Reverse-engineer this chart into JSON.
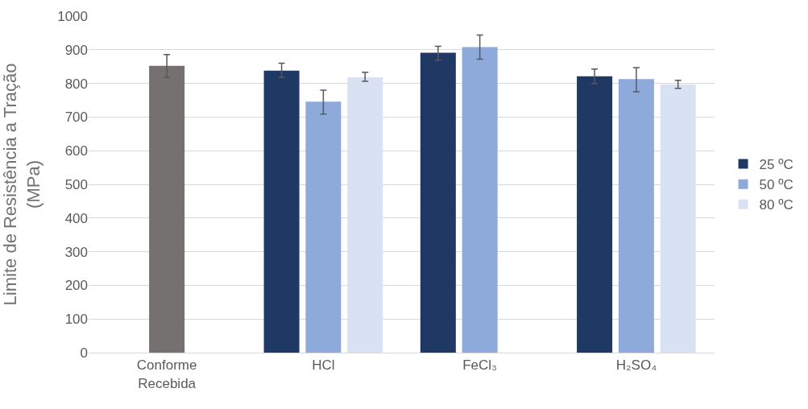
{
  "chart_data": {
    "type": "bar",
    "ylabel": "Limite de Resistência a Tração\n(MPa)",
    "categories": [
      "Conforme\nRecebida",
      "HCl",
      "FeCl₃",
      "H₂SO₄"
    ],
    "series": [
      {
        "color": "#767171",
        "values": [
          852,
          null,
          null,
          null
        ],
        "errors": [
          [
            818,
            886
          ],
          null,
          null,
          null
        ]
      },
      {
        "name": "25 ºC",
        "color": "#1f3864",
        "values": [
          null,
          838,
          891,
          821
        ],
        "errors": [
          null,
          [
            818,
            860
          ],
          [
            869,
            910
          ],
          [
            799,
            843
          ]
        ]
      },
      {
        "name": "50 ºC",
        "color": "#8eaadb",
        "values": [
          null,
          746,
          908,
          813
        ],
        "errors": [
          null,
          [
            709,
            780
          ],
          [
            872,
            944
          ],
          [
            775,
            847
          ]
        ]
      },
      {
        "name": "80 ºC",
        "color": "#d9e2f3",
        "values": [
          null,
          818,
          null,
          797
        ],
        "errors": [
          null,
          [
            806,
            833
          ],
          null,
          [
            785,
            809
          ]
        ]
      }
    ],
    "ylim": [
      0,
      1000
    ],
    "yticks": [
      0,
      100,
      200,
      300,
      400,
      500,
      600,
      700,
      800,
      900,
      1000
    ],
    "grid": "y",
    "legend": "right"
  }
}
